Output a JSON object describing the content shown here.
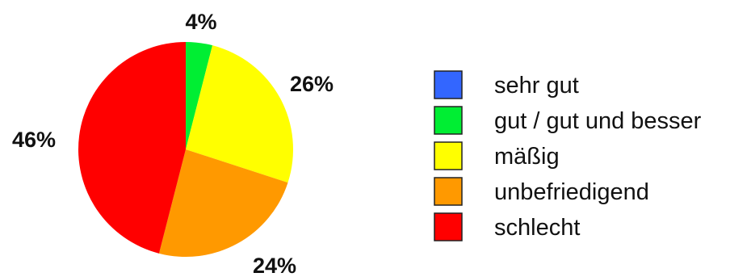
{
  "chart_data": {
    "type": "pie",
    "title": "",
    "slices": [
      {
        "label": "sehr gut",
        "value": 0,
        "value_label": "",
        "color": "#3366ff"
      },
      {
        "label": "gut / gut und besser",
        "value": 4,
        "value_label": "4%",
        "color": "#00ee33"
      },
      {
        "label": "mäßig",
        "value": 26,
        "value_label": "26%",
        "color": "#ffff00"
      },
      {
        "label": "unbefriedigend",
        "value": 24,
        "value_label": "24%",
        "color": "#ff9900"
      },
      {
        "label": "schlecht",
        "value": 46,
        "value_label": "46%",
        "color": "#ff0000"
      }
    ],
    "legend": "right"
  }
}
